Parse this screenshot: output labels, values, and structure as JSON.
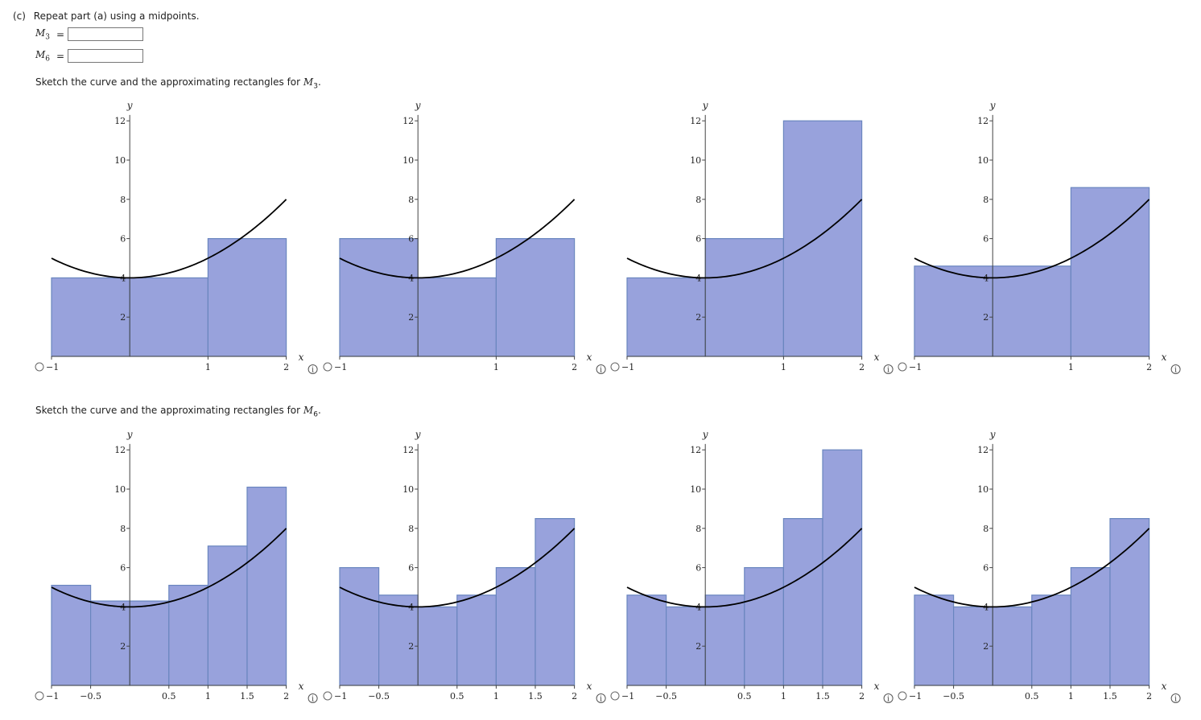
{
  "question": {
    "part": "(c)",
    "prompt": "Repeat part (a) using a midpoints.",
    "answers": [
      {
        "symbol": "M",
        "sub": "3",
        "value": ""
      },
      {
        "symbol": "M",
        "sub": "6",
        "value": ""
      }
    ]
  },
  "sketch_m3": {
    "prefix": "Sketch the curve and the approximating rectangles for ",
    "symbol": "M",
    "sub": "3",
    "suffix": "."
  },
  "sketch_m6": {
    "prefix": "Sketch the curve and the approximating rectangles for ",
    "symbol": "M",
    "sub": "6",
    "suffix": "."
  },
  "axis": {
    "x_label": "x",
    "y_label": "y",
    "y_ticks": [
      "2",
      "4",
      "6",
      "8",
      "10",
      "12"
    ]
  },
  "m3_xticks": [
    "−1",
    "1",
    "2"
  ],
  "m6_xticks": [
    "−1",
    "−0.5",
    "0.5",
    "1",
    "1.5",
    "2"
  ],
  "colors": {
    "fill": "#98a2dc",
    "stroke": "#6a86bf",
    "curve": "#000000"
  },
  "chart_data": [
    {
      "type": "bar",
      "option": 1,
      "group": "M3",
      "rect_edges": [
        -1,
        0,
        1,
        2
      ],
      "heights": [
        4,
        4,
        6
      ],
      "xlim": [
        -1,
        2
      ],
      "ylim": [
        0,
        12
      ],
      "curve": "x^2+4"
    },
    {
      "type": "bar",
      "option": 2,
      "group": "M3",
      "rect_edges": [
        -1,
        0,
        1,
        2
      ],
      "heights": [
        6,
        4,
        6
      ],
      "xlim": [
        -1,
        2
      ],
      "ylim": [
        0,
        12
      ],
      "curve": "x^2+4"
    },
    {
      "type": "bar",
      "option": 3,
      "group": "M3",
      "rect_edges": [
        -1,
        0,
        1,
        2
      ],
      "heights": [
        4,
        6,
        12
      ],
      "xlim": [
        -1,
        2
      ],
      "ylim": [
        0,
        12
      ],
      "curve": "x^2+4"
    },
    {
      "type": "bar",
      "option": 4,
      "group": "M3",
      "rect_edges": [
        -1,
        0,
        1,
        2
      ],
      "heights": [
        4.6,
        4.6,
        8.6
      ],
      "xlim": [
        -1,
        2
      ],
      "ylim": [
        0,
        12
      ],
      "curve": "x^2+4"
    },
    {
      "type": "bar",
      "option": 1,
      "group": "M6",
      "rect_edges": [
        -1,
        -0.5,
        0,
        0.5,
        1,
        1.5,
        2
      ],
      "heights": [
        5.1,
        4.3,
        4.3,
        5.1,
        7.1,
        10.1
      ],
      "xlim": [
        -1,
        2
      ],
      "ylim": [
        0,
        12
      ],
      "curve": "x^2+4"
    },
    {
      "type": "bar",
      "option": 2,
      "group": "M6",
      "rect_edges": [
        -1,
        -0.5,
        0,
        0.5,
        1,
        1.5,
        2
      ],
      "heights": [
        6,
        4.6,
        4,
        4.6,
        6,
        8.5
      ],
      "xlim": [
        -1,
        2
      ],
      "ylim": [
        0,
        12
      ],
      "curve": "x^2+4"
    },
    {
      "type": "bar",
      "option": 3,
      "group": "M6",
      "rect_edges": [
        -1,
        -0.5,
        0,
        0.5,
        1,
        1.5,
        2
      ],
      "heights": [
        4.6,
        4,
        4.6,
        6,
        8.5,
        12
      ],
      "xlim": [
        -1,
        2
      ],
      "ylim": [
        0,
        12
      ],
      "curve": "x^2+4"
    },
    {
      "type": "bar",
      "option": 4,
      "group": "M6",
      "rect_edges": [
        -1,
        -0.5,
        0,
        0.5,
        1,
        1.5,
        2
      ],
      "heights": [
        4.6,
        4,
        4,
        4.6,
        6,
        8.5
      ],
      "xlim": [
        -1,
        2
      ],
      "ylim": [
        0,
        12
      ],
      "curve": "x^2+4"
    }
  ]
}
